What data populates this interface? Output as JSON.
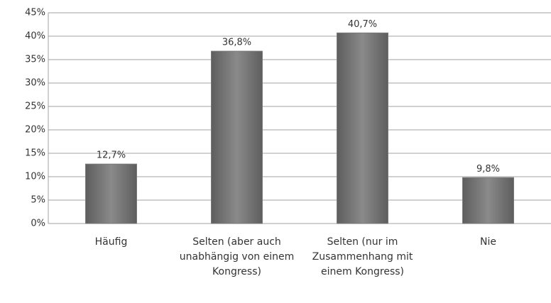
{
  "chart_data": {
    "type": "bar",
    "categories": [
      "Häufig",
      "Selten (aber auch unabhängig von einem Kongress)",
      "Selten (nur im Zusammenhang mit einem Kongress)",
      "Nie"
    ],
    "values": [
      12.7,
      36.8,
      40.7,
      9.8
    ],
    "value_labels": [
      "12,7%",
      "36,8%",
      "40,7%",
      "9,8%"
    ],
    "color": "#7a7a7a",
    "ylim": [
      0,
      45
    ],
    "yticks": [
      {
        "value": 0,
        "label": "0%"
      },
      {
        "value": 5,
        "label": "5%"
      },
      {
        "value": 10,
        "label": "10%"
      },
      {
        "value": 15,
        "label": "15%"
      },
      {
        "value": 20,
        "label": "20%"
      },
      {
        "value": 25,
        "label": "25%"
      },
      {
        "value": 30,
        "label": "30%"
      },
      {
        "value": 35,
        "label": "35%"
      },
      {
        "value": 40,
        "label": "40%"
      },
      {
        "value": 45,
        "label": "45%"
      }
    ],
    "grid": true
  }
}
